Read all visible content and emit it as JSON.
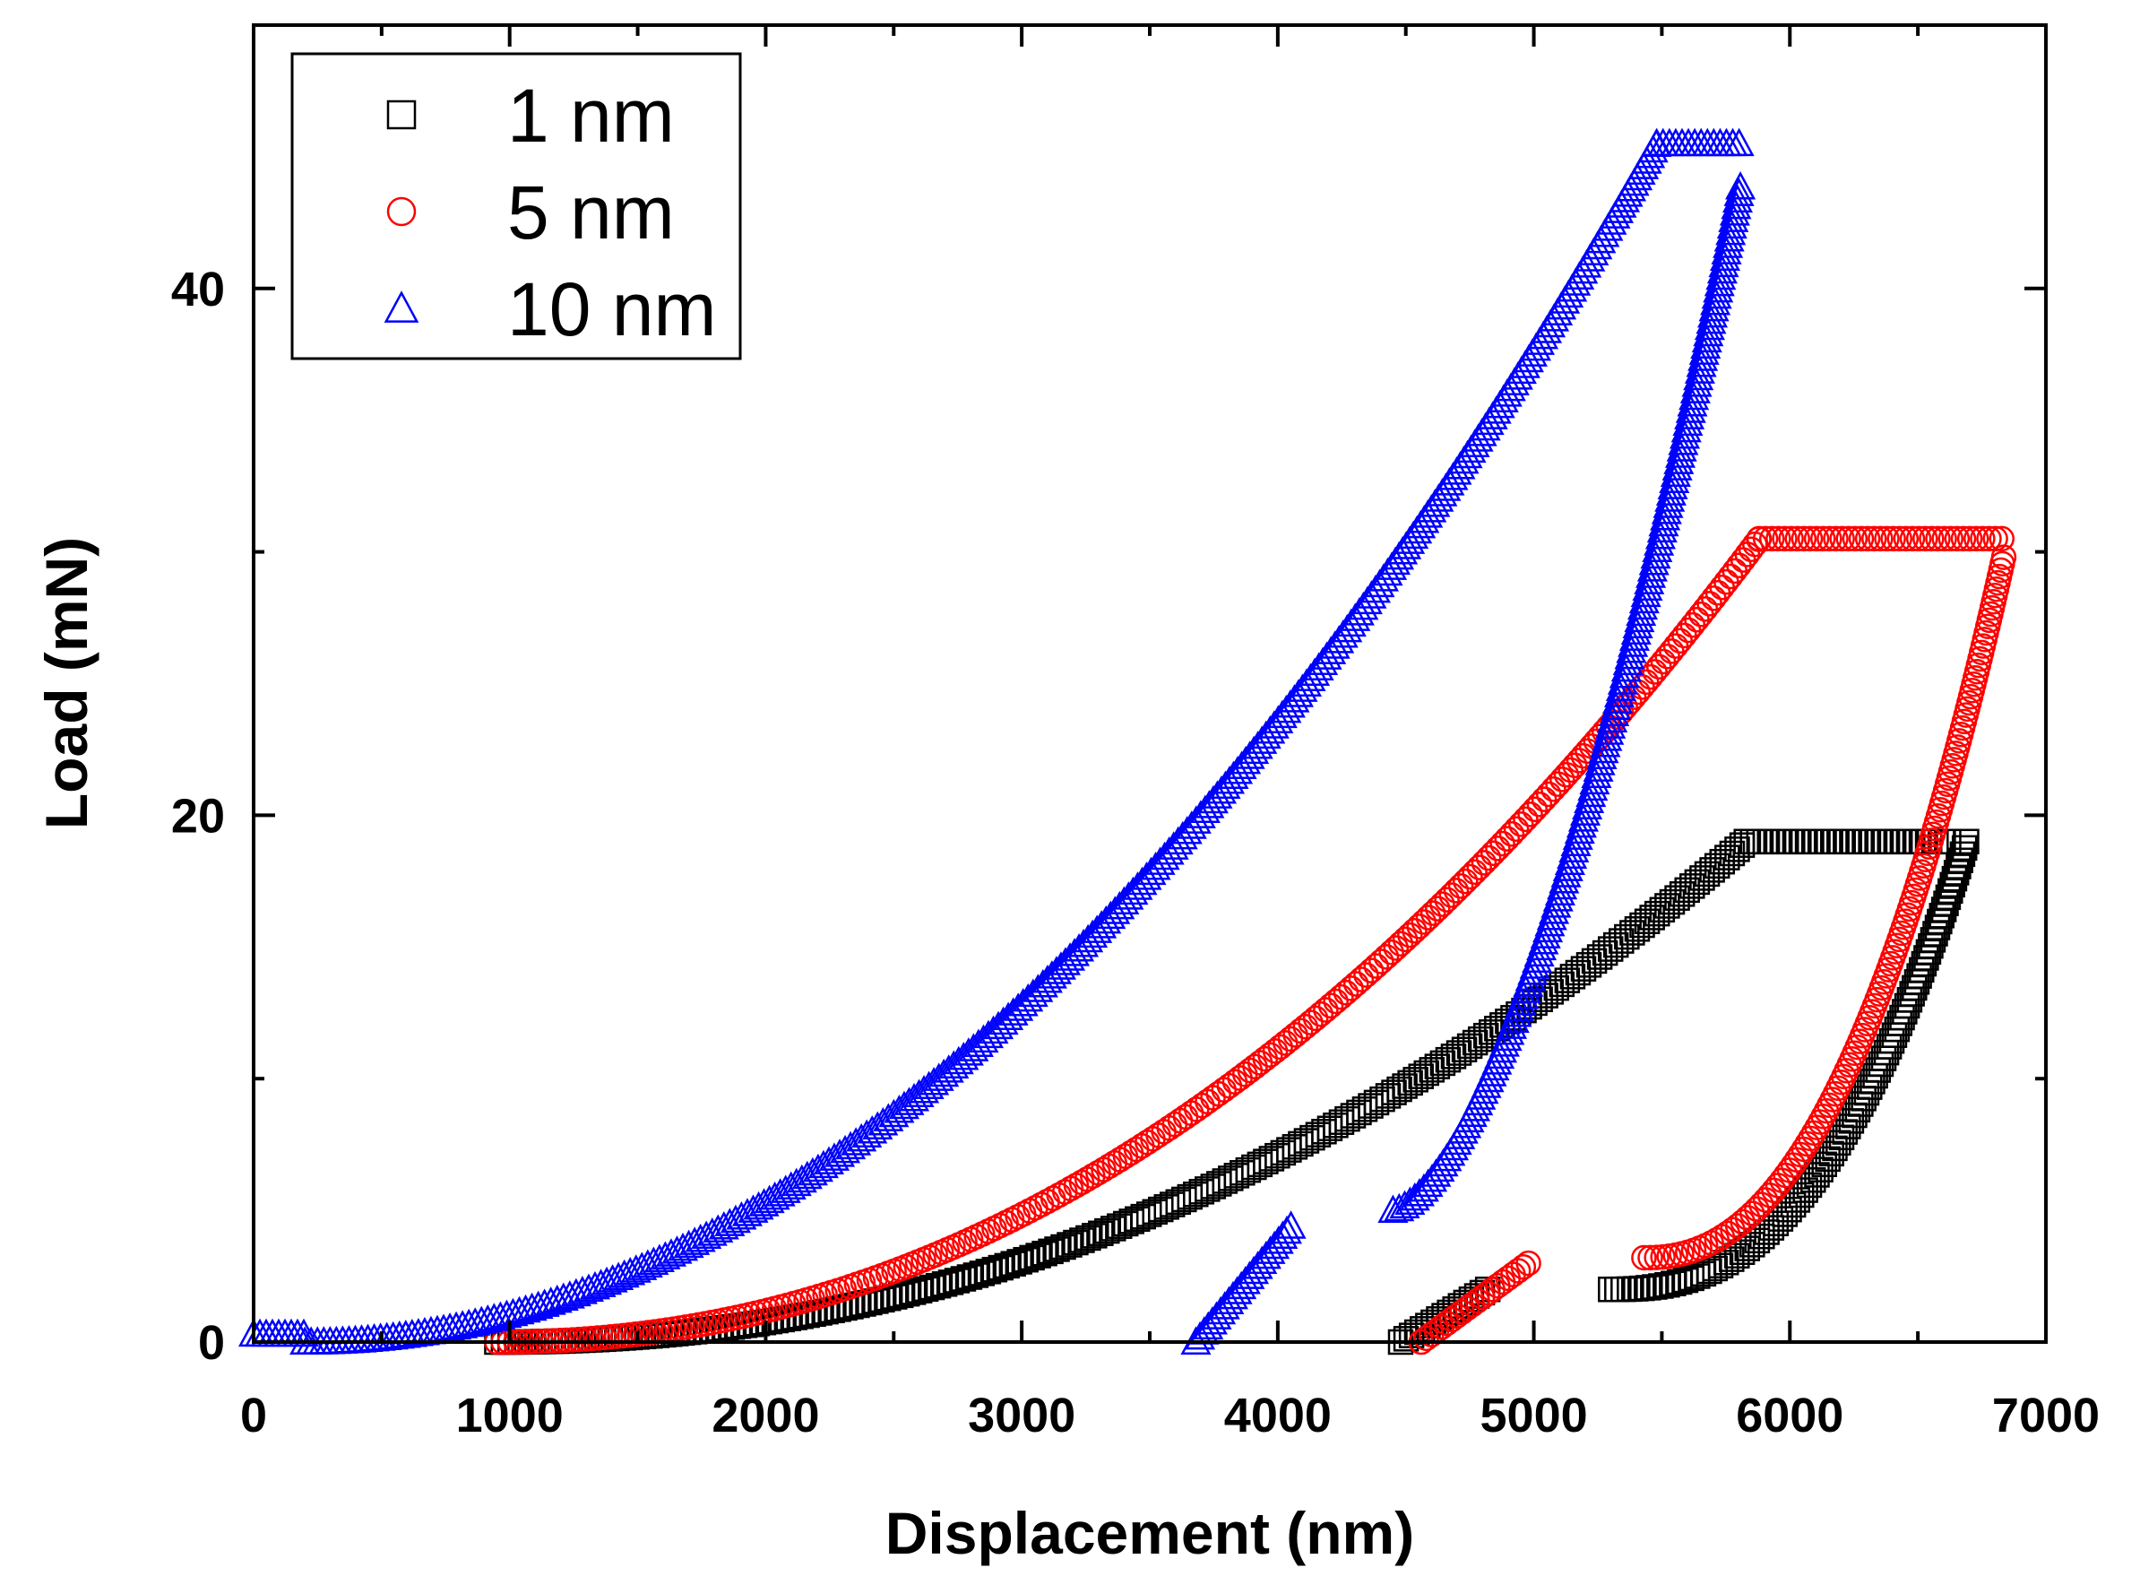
{
  "chart_data": {
    "type": "scatter",
    "title": "",
    "xlabel": "Displacement (nm)",
    "ylabel": "Load (mN)",
    "xlim": [
      0,
      7000
    ],
    "ylim": [
      0,
      50
    ],
    "xticks": [
      0,
      1000,
      2000,
      3000,
      4000,
      5000,
      6000,
      7000
    ],
    "yticks": [
      0,
      20,
      40
    ],
    "xtick_labels": [
      "0",
      "1000",
      "2000",
      "3000",
      "4000",
      "5000",
      "6000",
      "7000"
    ],
    "ytick_labels": [
      "0",
      "20",
      "40"
    ],
    "legend_position": "top-left",
    "series": [
      {
        "name": "1 nm",
        "marker": "square",
        "color": "#000000",
        "loading": {
          "x0": 950,
          "x1": 5830,
          "y_end": 19.0,
          "exp": 2.1
        },
        "hold": {
          "x0": 5830,
          "x1": 6620,
          "y": 19.0
        },
        "unloading": {
          "x_top": 6690,
          "y_top": 19.0,
          "x_bottom": 5300,
          "y_bottom": 2.0,
          "exp": 2.5
        },
        "segments": [
          {
            "x0": 4480,
            "x1": 4820,
            "y0": 0.0,
            "y1": 2.0
          }
        ]
      },
      {
        "name": "5 nm",
        "marker": "circle",
        "color": "#ff0000",
        "loading": {
          "x0": 950,
          "x1": 5880,
          "y_end": 30.5,
          "exp": 2.1
        },
        "hold": {
          "x0": 5880,
          "x1": 6830,
          "y": 30.5
        },
        "unloading": {
          "x_top": 6840,
          "y_top": 30.0,
          "x_bottom": 5430,
          "y_bottom": 3.2,
          "exp": 2.3
        },
        "segments": [
          {
            "x0": 4560,
            "x1": 4980,
            "y0": 0.0,
            "y1": 3.0
          }
        ]
      },
      {
        "name": "10 nm",
        "marker": "triangle",
        "color": "#0000ff",
        "loading": {
          "x0": 200,
          "x1": 5480,
          "y_end": 45.5,
          "exp": 2.0
        },
        "hold": {
          "x0": 5480,
          "x1": 5810,
          "y": 45.5
        },
        "unloading": {
          "x_top": 5810,
          "y_top": 44.0,
          "x_bottom": 4450,
          "y_bottom": 5.0,
          "exp": 1.6
        },
        "segments": [
          {
            "x0": 3680,
            "x1": 4060,
            "y0": 0.0,
            "y1": 4.5
          },
          {
            "x0": 0,
            "x1": 200,
            "y0": 0.3,
            "y1": 0.3
          }
        ]
      }
    ]
  }
}
